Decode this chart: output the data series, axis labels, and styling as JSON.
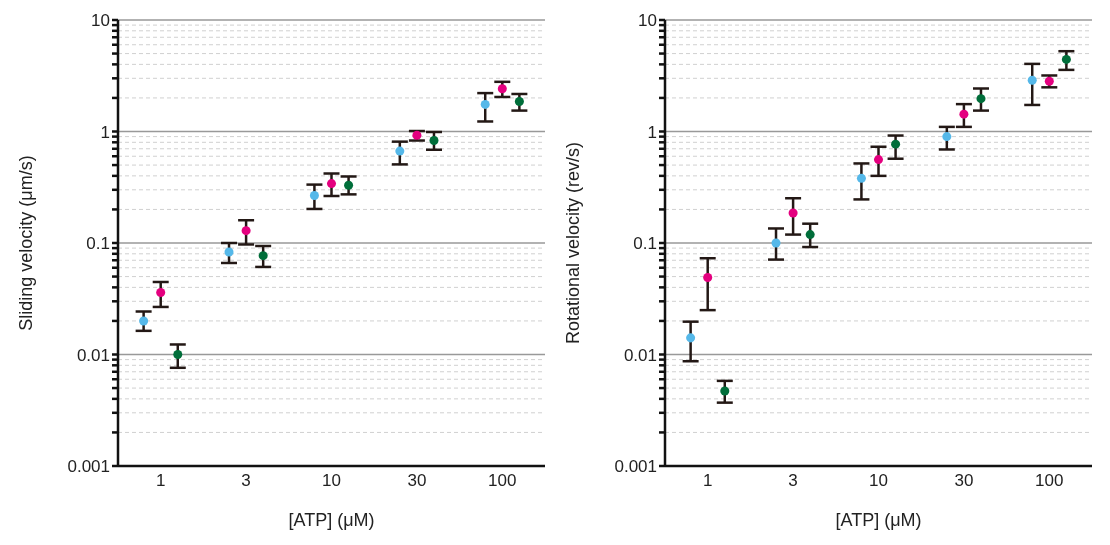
{
  "chart_data": [
    {
      "type": "scatter",
      "xlabel": "[ATP] (μM)",
      "ylabel": "Sliding velocity (μm/s)",
      "categories": [
        "1",
        "3",
        "10",
        "30",
        "100"
      ],
      "log": "y",
      "grid": "y",
      "marker": "circle",
      "ylim": [
        0.001,
        10
      ],
      "yticks": [
        0.001,
        {
          "value": 0.002,
          "label": null
        },
        {
          "value": 0.003,
          "label": null
        },
        {
          "value": 0.004,
          "label": null
        },
        {
          "value": 0.005,
          "label": null
        },
        {
          "value": 0.006,
          "label": null
        },
        {
          "value": 0.007,
          "label": null
        },
        {
          "value": 0.008,
          "label": null
        },
        {
          "value": 0.009,
          "label": null
        },
        0.01,
        {
          "value": 0.02,
          "label": null
        },
        {
          "value": 0.03,
          "label": null
        },
        {
          "value": 0.04,
          "label": null
        },
        {
          "value": 0.05,
          "label": null
        },
        {
          "value": 0.06,
          "label": null
        },
        {
          "value": 0.07,
          "label": null
        },
        {
          "value": 0.08,
          "label": null
        },
        {
          "value": 0.09,
          "label": null
        },
        0.1,
        {
          "value": 0.2,
          "label": null
        },
        {
          "value": 0.3,
          "label": null
        },
        {
          "value": 0.4,
          "label": null
        },
        {
          "value": 0.5,
          "label": null
        },
        {
          "value": 0.6,
          "label": null
        },
        {
          "value": 0.7,
          "label": null
        },
        {
          "value": 0.8,
          "label": null
        },
        {
          "value": 0.9,
          "label": null
        },
        1,
        {
          "value": 2,
          "label": null
        },
        {
          "value": 3,
          "label": null
        },
        {
          "value": 4,
          "label": null
        },
        {
          "value": 5,
          "label": null
        },
        {
          "value": 6,
          "label": null
        },
        {
          "value": 7,
          "label": null
        },
        {
          "value": 8,
          "label": null
        },
        {
          "value": 9,
          "label": null
        },
        10
      ],
      "series": [
        {
          "color": "#55b8e9",
          "values": [
            0.02,
            0.083,
            0.267,
            0.667,
            1.75
          ],
          "errors": [
            [
              0.0163,
              0.0243
            ],
            [
              0.0662,
              0.1
            ],
            [
              0.202,
              0.334
            ],
            [
              0.507,
              0.811
            ],
            [
              1.23,
              2.21
            ]
          ]
        },
        {
          "color": "#e4007f",
          "values": [
            0.036,
            0.129,
            0.341,
            0.925,
            2.42
          ],
          "errors": [
            [
              0.0267,
              0.0447
            ],
            [
              0.097,
              0.16
            ],
            [
              0.264,
              0.42
            ],
            [
              0.83,
              1.01
            ],
            [
              2.04,
              2.79
            ]
          ]
        },
        {
          "color": "#006e3a",
          "values": [
            0.01,
            0.077,
            0.33,
            0.83,
            1.86
          ],
          "errors": [
            [
              0.0076,
              0.0123
            ],
            [
              0.061,
              0.094
            ],
            [
              0.273,
              0.395
            ],
            [
              0.686,
              0.99
            ],
            [
              1.54,
              2.17
            ]
          ]
        }
      ]
    },
    {
      "type": "scatter",
      "xlabel": "[ATP] (μM)",
      "ylabel": "Rotational velocity (rev/s)",
      "categories": [
        "1",
        "3",
        "10",
        "30",
        "100"
      ],
      "log": "y",
      "grid": "y",
      "marker": "circle",
      "ylim": [
        0.001,
        10
      ],
      "yticks": [
        0.001,
        {
          "value": 0.002,
          "label": null
        },
        {
          "value": 0.003,
          "label": null
        },
        {
          "value": 0.004,
          "label": null
        },
        {
          "value": 0.005,
          "label": null
        },
        {
          "value": 0.006,
          "label": null
        },
        {
          "value": 0.007,
          "label": null
        },
        {
          "value": 0.008,
          "label": null
        },
        {
          "value": 0.009,
          "label": null
        },
        0.01,
        {
          "value": 0.02,
          "label": null
        },
        {
          "value": 0.03,
          "label": null
        },
        {
          "value": 0.04,
          "label": null
        },
        {
          "value": 0.05,
          "label": null
        },
        {
          "value": 0.06,
          "label": null
        },
        {
          "value": 0.07,
          "label": null
        },
        {
          "value": 0.08,
          "label": null
        },
        {
          "value": 0.09,
          "label": null
        },
        0.1,
        {
          "value": 0.2,
          "label": null
        },
        {
          "value": 0.3,
          "label": null
        },
        {
          "value": 0.4,
          "label": null
        },
        {
          "value": 0.5,
          "label": null
        },
        {
          "value": 0.6,
          "label": null
        },
        {
          "value": 0.7,
          "label": null
        },
        {
          "value": 0.8,
          "label": null
        },
        {
          "value": 0.9,
          "label": null
        },
        1,
        {
          "value": 2,
          "label": null
        },
        {
          "value": 3,
          "label": null
        },
        {
          "value": 4,
          "label": null
        },
        {
          "value": 5,
          "label": null
        },
        {
          "value": 6,
          "label": null
        },
        {
          "value": 7,
          "label": null
        },
        {
          "value": 8,
          "label": null
        },
        {
          "value": 9,
          "label": null
        },
        10
      ],
      "series": [
        {
          "color": "#55b8e9",
          "values": [
            0.0141,
            0.1,
            0.38,
            0.9,
            2.88
          ],
          "errors": [
            [
              0.0087,
              0.0197
            ],
            [
              0.071,
              0.135
            ],
            [
              0.246,
              0.517
            ],
            [
              0.69,
              1.1
            ],
            [
              1.73,
              4.04
            ]
          ]
        },
        {
          "color": "#e4007f",
          "values": [
            0.049,
            0.186,
            0.56,
            1.43,
            2.82
          ],
          "errors": [
            [
              0.025,
              0.073
            ],
            [
              0.119,
              0.252
            ],
            [
              0.4,
              0.73
            ],
            [
              1.1,
              1.76
            ],
            [
              2.49,
              3.18
            ]
          ]
        },
        {
          "color": "#006e3a",
          "values": [
            0.0047,
            0.119,
            0.77,
            1.97,
            4.43
          ],
          "errors": [
            [
              0.0037,
              0.0058
            ],
            [
              0.092,
              0.149
            ],
            [
              0.57,
              0.92
            ],
            [
              1.54,
              2.43
            ],
            [
              3.57,
              5.25
            ]
          ]
        }
      ]
    }
  ]
}
